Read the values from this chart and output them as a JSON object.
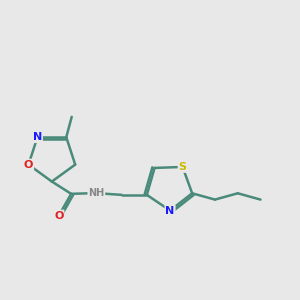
{
  "background_color": "#e8e8e8",
  "bond_color": "#4a8a7a",
  "atom_colors": {
    "N": "#1a1aff",
    "O": "#dd2222",
    "S": "#ccbb00",
    "C": "#4a8a7a",
    "H": "#888888"
  },
  "bond_lw": 1.8,
  "font_size_atom": 8.0,
  "font_size_small": 7.0
}
